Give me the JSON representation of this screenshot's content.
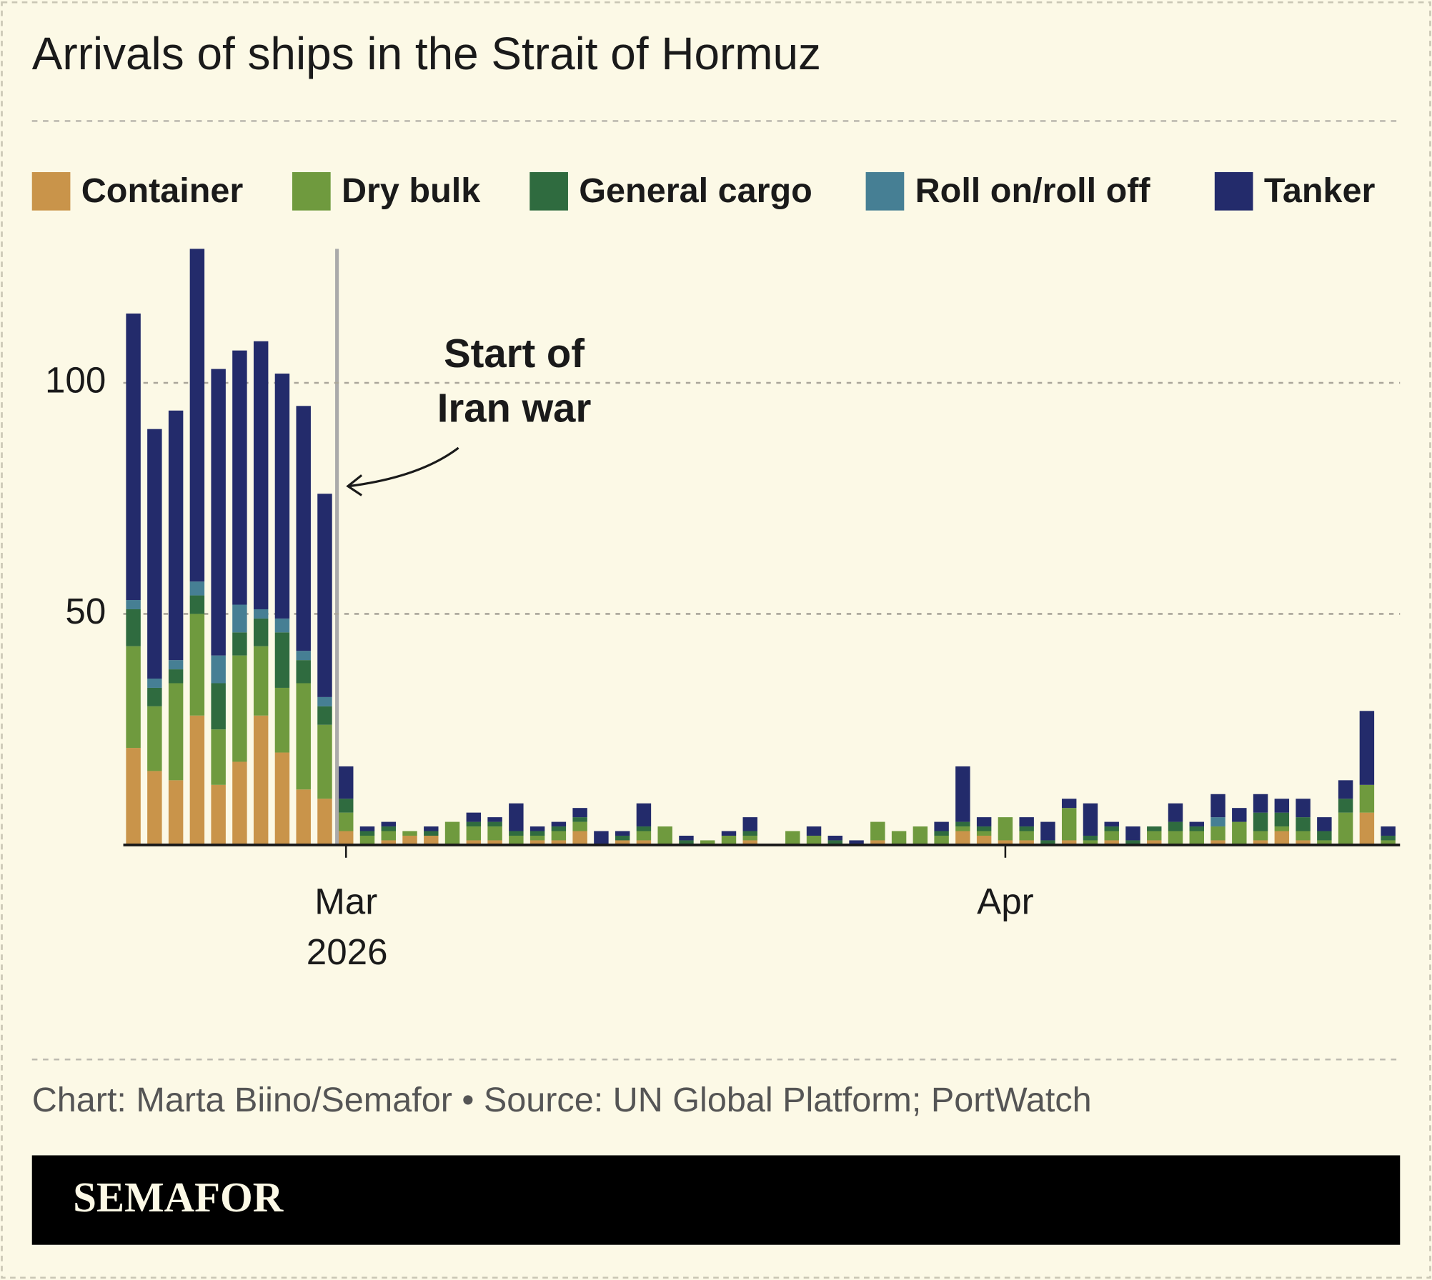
{
  "chart_data": {
    "type": "stacked_bar",
    "title": "Arrivals of ships in the Strait of Hormuz",
    "annotation": [
      "Start of",
      "Iran war"
    ],
    "x_year_label": "2026",
    "source": "Chart: Marta Biino/Semafor • Source: UN Global Platform; PortWatch",
    "brand": "SEMAFOR",
    "categories": [
      null,
      null,
      null,
      null,
      null,
      null,
      null,
      null,
      null,
      null,
      "Mar",
      null,
      null,
      null,
      null,
      null,
      null,
      null,
      null,
      null,
      null,
      null,
      null,
      null,
      null,
      null,
      null,
      null,
      null,
      null,
      null,
      null,
      null,
      null,
      null,
      null,
      null,
      null,
      null,
      null,
      null,
      "Apr",
      null,
      null,
      null,
      null,
      null,
      null,
      null,
      null,
      null,
      null,
      null,
      null,
      null,
      null,
      null,
      null,
      null,
      null
    ],
    "series": [
      {
        "name": "Container",
        "color": "#c9944a",
        "values": [
          21,
          16,
          14,
          28,
          13,
          18,
          28,
          20,
          12,
          10,
          3,
          0,
          1,
          2,
          2,
          0,
          1,
          1,
          0,
          1,
          1,
          3,
          0,
          1,
          1,
          0,
          0,
          0,
          0,
          1,
          0,
          0,
          0,
          0,
          0,
          1,
          0,
          0,
          0,
          3,
          2,
          1,
          1,
          0,
          1,
          0,
          1,
          0,
          1,
          0,
          0,
          1,
          0,
          1,
          3,
          1,
          0,
          0,
          7,
          0
        ]
      },
      {
        "name": "Dry bulk",
        "color": "#6f9a3e",
        "values": [
          22,
          14,
          21,
          22,
          12,
          23,
          15,
          14,
          23,
          16,
          4,
          2,
          2,
          1,
          0,
          5,
          3,
          3,
          2,
          1,
          2,
          2,
          0,
          0,
          2,
          4,
          0,
          1,
          2,
          1,
          0,
          3,
          2,
          0,
          0,
          4,
          3,
          4,
          2,
          1,
          1,
          5,
          2,
          0,
          7,
          1,
          2,
          0,
          2,
          3,
          3,
          3,
          5,
          2,
          1,
          2,
          1,
          7,
          6,
          1
        ]
      },
      {
        "name": "General cargo",
        "color": "#2f6b3f",
        "values": [
          8,
          4,
          3,
          4,
          10,
          5,
          6,
          12,
          5,
          4,
          3,
          1,
          1,
          0,
          1,
          0,
          1,
          1,
          1,
          1,
          1,
          1,
          0,
          1,
          1,
          0,
          1,
          0,
          0,
          1,
          0,
          0,
          0,
          1,
          0,
          0,
          0,
          0,
          1,
          1,
          1,
          0,
          1,
          1,
          0,
          1,
          1,
          1,
          1,
          2,
          1,
          0,
          0,
          4,
          3,
          3,
          2,
          3,
          0,
          1
        ]
      },
      {
        "name": "Roll on/roll off",
        "color": "#467f94",
        "values": [
          2,
          2,
          2,
          3,
          6,
          6,
          2,
          3,
          2,
          2,
          0,
          0,
          0,
          0,
          0,
          0,
          0,
          0,
          0,
          0,
          0,
          0,
          0,
          0,
          0,
          0,
          0,
          0,
          0,
          0,
          0,
          0,
          0,
          0,
          0,
          0,
          0,
          0,
          0,
          0,
          0,
          0,
          0,
          0,
          0,
          0,
          0,
          0,
          0,
          0,
          0,
          2,
          0,
          0,
          0,
          0,
          0,
          0,
          0,
          0
        ]
      },
      {
        "name": "Tanker",
        "color": "#232b6b",
        "values": [
          62,
          54,
          54,
          72,
          62,
          55,
          58,
          53,
          53,
          44,
          7,
          1,
          1,
          0,
          1,
          0,
          2,
          1,
          6,
          1,
          1,
          2,
          3,
          1,
          5,
          0,
          1,
          0,
          1,
          3,
          0,
          0,
          2,
          1,
          1,
          0,
          0,
          0,
          2,
          12,
          2,
          0,
          2,
          4,
          2,
          7,
          1,
          3,
          0,
          4,
          1,
          5,
          3,
          4,
          3,
          4,
          3,
          4,
          16,
          2
        ]
      }
    ],
    "ylim": [
      0,
      129
    ],
    "yticks": [
      50,
      100
    ],
    "grid": true
  }
}
